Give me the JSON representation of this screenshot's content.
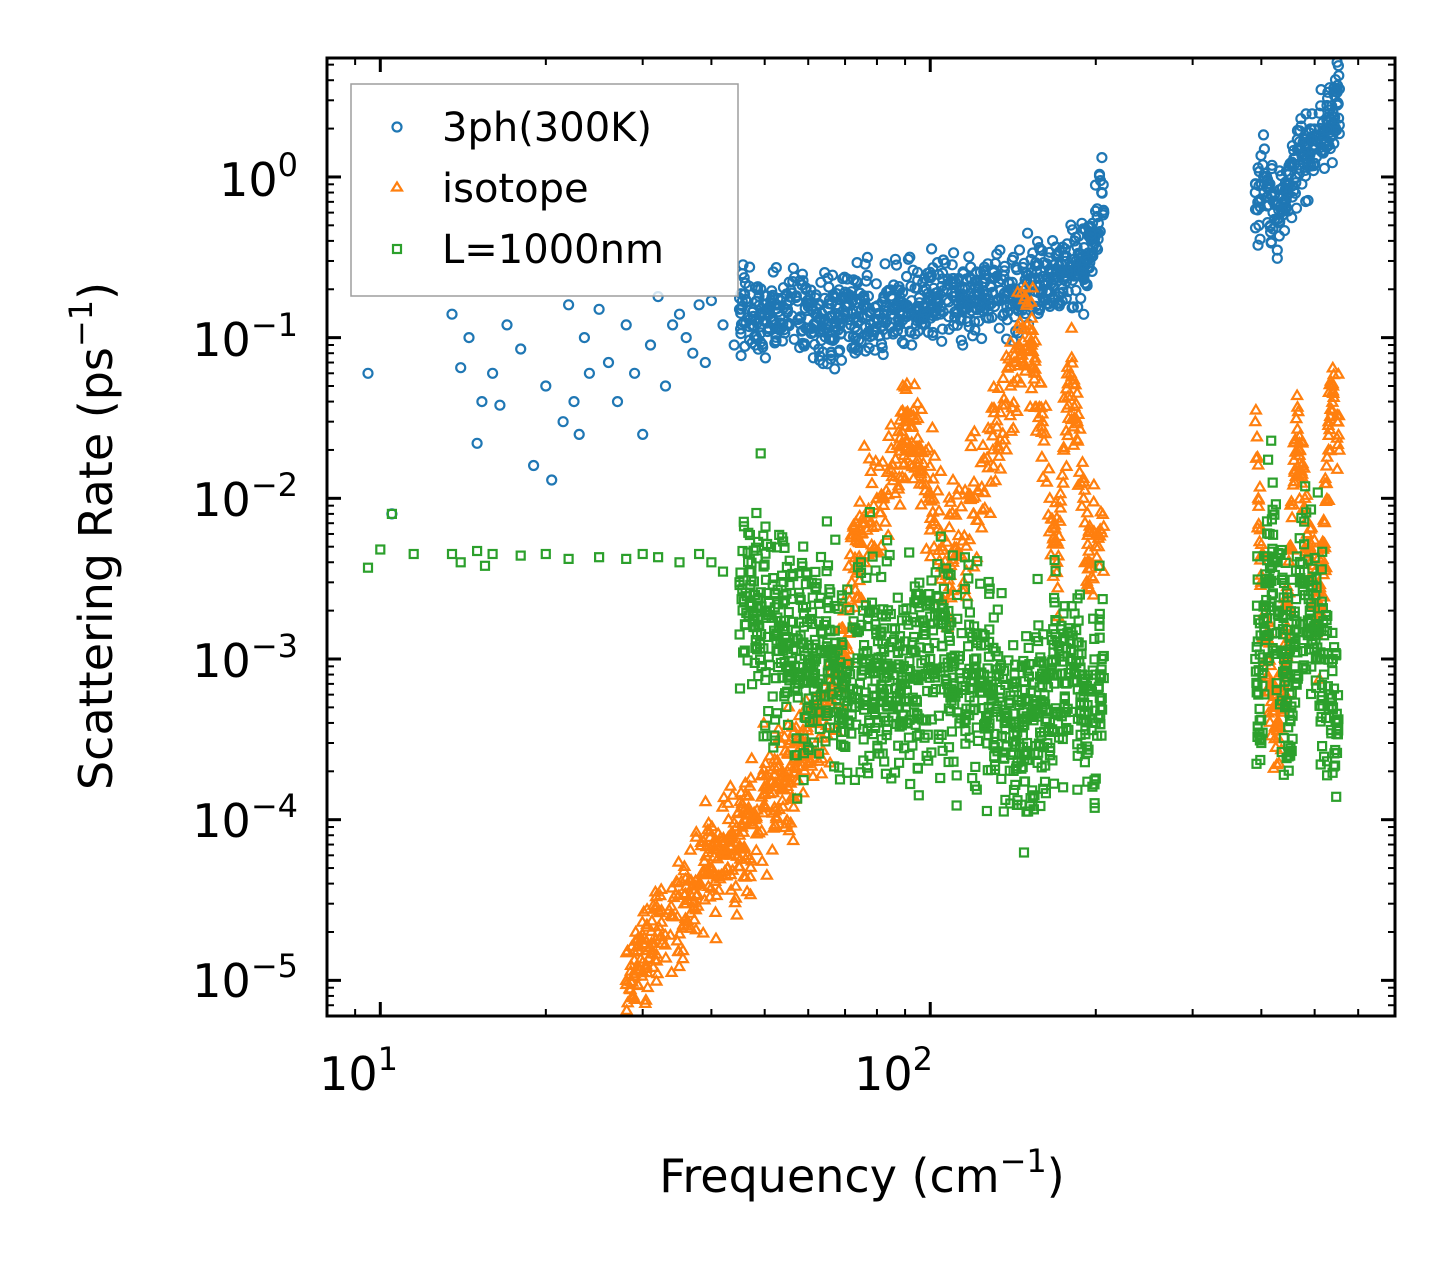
{
  "chart_data": {
    "type": "scatter",
    "xlabel": "Frequency (cm",
    "xlabel_sup": "−1",
    "xlabel_end": ")",
    "ylabel": "Scattering Rate (ps",
    "ylabel_sup": "−1",
    "ylabel_end": ")",
    "x_scale": "log",
    "y_scale": "log",
    "xlim": [
      8,
      700
    ],
    "ylim": [
      6e-06,
      5.5
    ],
    "x_ticks": [
      {
        "value": 10,
        "base": "10",
        "exp": "1"
      },
      {
        "value": 100,
        "base": "10",
        "exp": "2"
      }
    ],
    "y_ticks": [
      {
        "value": 1,
        "base": "10",
        "exp": "0"
      },
      {
        "value": 0.1,
        "base": "10",
        "exp": "−1"
      },
      {
        "value": 0.01,
        "base": "10",
        "exp": "−2"
      },
      {
        "value": 0.001,
        "base": "10",
        "exp": "−3"
      },
      {
        "value": 0.0001,
        "base": "10",
        "exp": "−4"
      },
      {
        "value": 1e-05,
        "base": "10",
        "exp": "−5"
      }
    ],
    "legend_position": "top-left",
    "series": [
      {
        "name": "3ph(300K)",
        "marker": "circle",
        "color": "#1f77b4",
        "x": [
          9.5,
          10.5,
          13.5,
          14,
          14.5,
          15,
          15.3,
          16,
          16.5,
          17,
          18,
          19,
          20,
          20.5,
          21.5,
          22,
          22.5,
          23,
          23.5,
          24,
          25,
          26,
          27,
          28,
          29,
          30,
          31,
          32,
          33,
          34,
          35,
          36,
          37,
          38,
          39,
          40,
          42,
          44,
          45,
          47,
          50,
          55,
          60,
          65,
          70,
          75,
          80,
          85,
          90,
          95,
          100,
          110,
          120,
          130,
          140,
          150,
          160,
          170,
          180,
          190,
          200,
          205,
          390,
          395,
          400,
          405,
          410,
          420,
          430,
          440,
          450,
          460,
          470,
          480,
          490,
          500,
          510,
          520,
          530,
          540,
          550
        ],
        "y": [
          0.06,
          0.008,
          0.14,
          0.065,
          0.1,
          0.022,
          0.04,
          0.06,
          0.038,
          0.12,
          0.085,
          0.016,
          0.05,
          0.013,
          0.03,
          0.16,
          0.04,
          0.025,
          0.1,
          0.06,
          0.15,
          0.07,
          0.04,
          0.12,
          0.06,
          0.025,
          0.09,
          0.18,
          0.05,
          0.12,
          0.14,
          0.1,
          0.08,
          0.16,
          0.07,
          0.17,
          0.12,
          0.09,
          0.15,
          0.13,
          0.14,
          0.15,
          0.13,
          0.12,
          0.14,
          0.15,
          0.13,
          0.14,
          0.16,
          0.15,
          0.17,
          0.18,
          0.17,
          0.19,
          0.2,
          0.22,
          0.24,
          0.26,
          0.28,
          0.3,
          0.45,
          0.8,
          0.8,
          0.7,
          0.9,
          1.0,
          0.75,
          0.6,
          0.55,
          0.7,
          0.9,
          1.2,
          1.5,
          1.3,
          1.4,
          1.8,
          2.0,
          1.9,
          2.2,
          2.5,
          2.8
        ]
      },
      {
        "name": "isotope",
        "marker": "triangle",
        "color": "#ff7f0e",
        "x": [
          28,
          29,
          30,
          31,
          32,
          34,
          36,
          38,
          40,
          42,
          45,
          48,
          50,
          52,
          55,
          58,
          60,
          62,
          65,
          68,
          70,
          72,
          75,
          78,
          80,
          85,
          90,
          95,
          100,
          105,
          110,
          120,
          130,
          140,
          145,
          150,
          155,
          160,
          165,
          170,
          175,
          180,
          185,
          190,
          195,
          200,
          390,
          395,
          400,
          410,
          420,
          430,
          440,
          450,
          460,
          470,
          480,
          490,
          500,
          510,
          520,
          530,
          540,
          550
        ],
        "y": [
          1e-05,
          1.1e-05,
          1.3e-05,
          1.6e-05,
          2e-05,
          2.5e-05,
          3e-05,
          4e-05,
          5e-05,
          6e-05,
          8e-05,
          0.0001,
          0.00012,
          0.00016,
          0.0002,
          0.00025,
          0.0003,
          0.0004,
          0.0005,
          0.0008,
          0.001,
          0.003,
          0.006,
          0.008,
          0.01,
          0.015,
          0.03,
          0.02,
          0.01,
          0.005,
          0.004,
          0.008,
          0.02,
          0.05,
          0.09,
          0.12,
          0.06,
          0.03,
          0.01,
          0.004,
          0.02,
          0.06,
          0.03,
          0.01,
          0.004,
          0.005,
          0.03,
          0.01,
          0.003,
          0.001,
          0.0005,
          0.0004,
          0.0008,
          0.005,
          0.015,
          0.02,
          0.01,
          0.005,
          0.003,
          0.002,
          0.005,
          0.02,
          0.05,
          0.03
        ]
      },
      {
        "name": "L=1000nm",
        "marker": "square",
        "color": "#2ca02c",
        "x": [
          9.5,
          10,
          10.5,
          11.5,
          13.5,
          14,
          15,
          15.5,
          16,
          18,
          20,
          22,
          25,
          28,
          30,
          32,
          35,
          38,
          40,
          42,
          45,
          48,
          50,
          52,
          55,
          58,
          60,
          62,
          65,
          68,
          70,
          72,
          75,
          80,
          85,
          90,
          95,
          100,
          105,
          110,
          120,
          130,
          140,
          150,
          160,
          170,
          180,
          190,
          200,
          205,
          390,
          395,
          400,
          405,
          410,
          420,
          430,
          440,
          450,
          460,
          470,
          480,
          490,
          500,
          510,
          520,
          530,
          540,
          550
        ],
        "y": [
          0.0037,
          0.0048,
          0.008,
          0.0045,
          0.0045,
          0.004,
          0.0047,
          0.0038,
          0.0045,
          0.0044,
          0.0045,
          0.0042,
          0.0043,
          0.0042,
          0.0045,
          0.0043,
          0.004,
          0.0045,
          0.004,
          0.0035,
          0.003,
          0.0025,
          0.002,
          0.0015,
          0.0012,
          0.001,
          0.0009,
          0.001,
          0.0012,
          0.0008,
          0.0006,
          0.0005,
          0.0008,
          0.001,
          0.0009,
          0.0007,
          0.0008,
          0.001,
          0.0012,
          0.0009,
          0.0008,
          0.0006,
          0.0004,
          0.0003,
          0.0005,
          0.0008,
          0.001,
          0.0006,
          0.0004,
          0.001,
          0.001,
          0.0006,
          0.0003,
          0.0015,
          0.003,
          0.004,
          0.002,
          0.001,
          0.0006,
          0.0015,
          0.003,
          0.0025,
          0.002,
          0.0015,
          0.001,
          0.0008,
          0.0006,
          0.0005,
          0.0004
        ]
      }
    ]
  }
}
